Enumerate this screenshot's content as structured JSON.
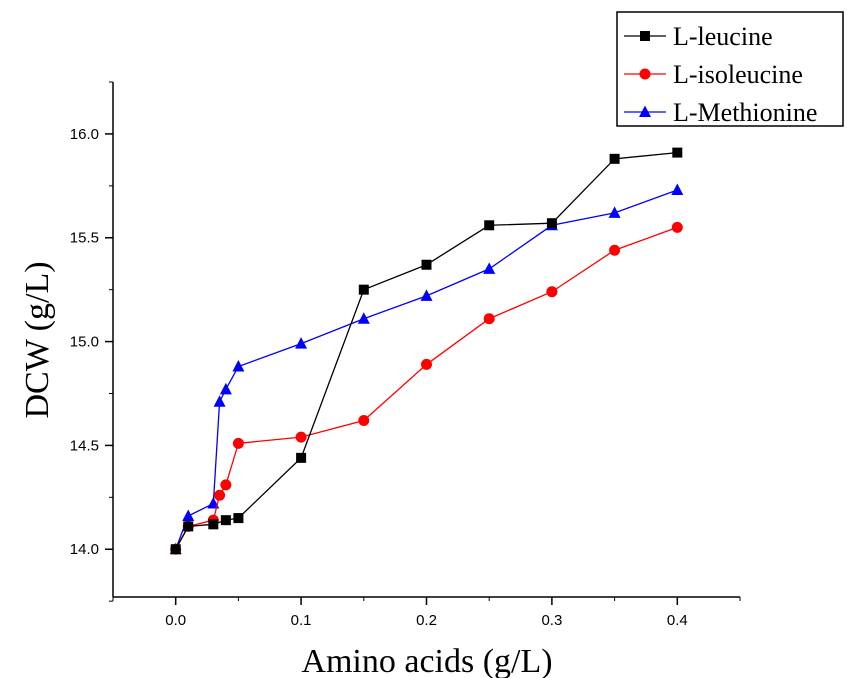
{
  "chart_data": {
    "type": "line",
    "title": "",
    "xlabel": "Amino acids (g/L)",
    "ylabel": "DCW (g/L)",
    "xlim": [
      -0.05,
      0.45
    ],
    "ylim": [
      13.77,
      16.25
    ],
    "xticks": [
      0.0,
      0.1,
      0.2,
      0.3,
      0.4
    ],
    "xtick_labels": [
      "0.0",
      "0.1",
      "0.2",
      "0.3",
      "0.4"
    ],
    "yticks": [
      14.0,
      14.5,
      15.0,
      15.5,
      16.0
    ],
    "ytick_labels": [
      "14.0",
      "14.5",
      "15.0",
      "15.5",
      "16.0"
    ],
    "grid": false,
    "legend_position": "top-right",
    "series": [
      {
        "name": "L-leucine",
        "color": "#000000",
        "marker": "square",
        "x": [
          0.0,
          0.01,
          0.03,
          0.04,
          0.05,
          0.1,
          0.15,
          0.2,
          0.25,
          0.3,
          0.35,
          0.4
        ],
        "y": [
          14.0,
          14.11,
          14.12,
          14.14,
          14.15,
          14.44,
          15.25,
          15.37,
          15.56,
          15.57,
          15.88,
          15.91
        ]
      },
      {
        "name": "L-isoleucine",
        "color": "#ff0000",
        "marker": "circle",
        "x": [
          0.0,
          0.01,
          0.03,
          0.035,
          0.04,
          0.05,
          0.1,
          0.15,
          0.2,
          0.25,
          0.3,
          0.35,
          0.4
        ],
        "y": [
          14.0,
          14.11,
          14.14,
          14.26,
          14.31,
          14.51,
          14.54,
          14.62,
          14.89,
          15.11,
          15.24,
          15.44,
          15.55
        ]
      },
      {
        "name": "L-Methionine",
        "color": "#0000ff",
        "marker": "triangle",
        "x": [
          0.0,
          0.01,
          0.03,
          0.035,
          0.04,
          0.05,
          0.1,
          0.15,
          0.2,
          0.25,
          0.3,
          0.35,
          0.4
        ],
        "y": [
          14.0,
          14.16,
          14.22,
          14.71,
          14.77,
          14.88,
          14.99,
          15.11,
          15.22,
          15.35,
          15.56,
          15.62,
          15.73
        ]
      }
    ]
  }
}
